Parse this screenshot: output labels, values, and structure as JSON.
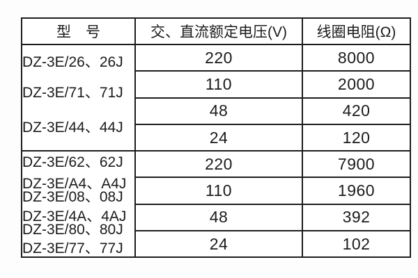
{
  "colors": {
    "background": "#fdfdfd",
    "table_background": "#ffffff",
    "border": "#1c1c1c",
    "text": "#1b1b1b"
  },
  "table": {
    "headers": [
      "型　号",
      "交、直流额定电压(V)",
      "线圈电阻(Ω)"
    ],
    "groups": [
      {
        "models": [
          "DZ-3E/26、26J",
          "DZ-3E/71、71J",
          "DZ-3E/44、44J"
        ],
        "rows": [
          {
            "voltage": "220",
            "resistance": "8000"
          },
          {
            "voltage": "110",
            "resistance": "2000"
          },
          {
            "voltage": "48",
            "resistance": "420"
          },
          {
            "voltage": "24",
            "resistance": "120"
          }
        ]
      },
      {
        "models": [
          "DZ-3E/62、62J",
          "DZ-3E/A4、A4J",
          "DZ-3E/08、08J",
          "DZ-3E/4A、4AJ",
          "DZ-3E/80、80J",
          "DZ-3E/77、77J"
        ],
        "rows": [
          {
            "voltage": "220",
            "resistance": "7900"
          },
          {
            "voltage": "110",
            "resistance": "1960"
          },
          {
            "voltage": "48",
            "resistance": "392"
          },
          {
            "voltage": "24",
            "resistance": "102"
          }
        ]
      }
    ]
  }
}
